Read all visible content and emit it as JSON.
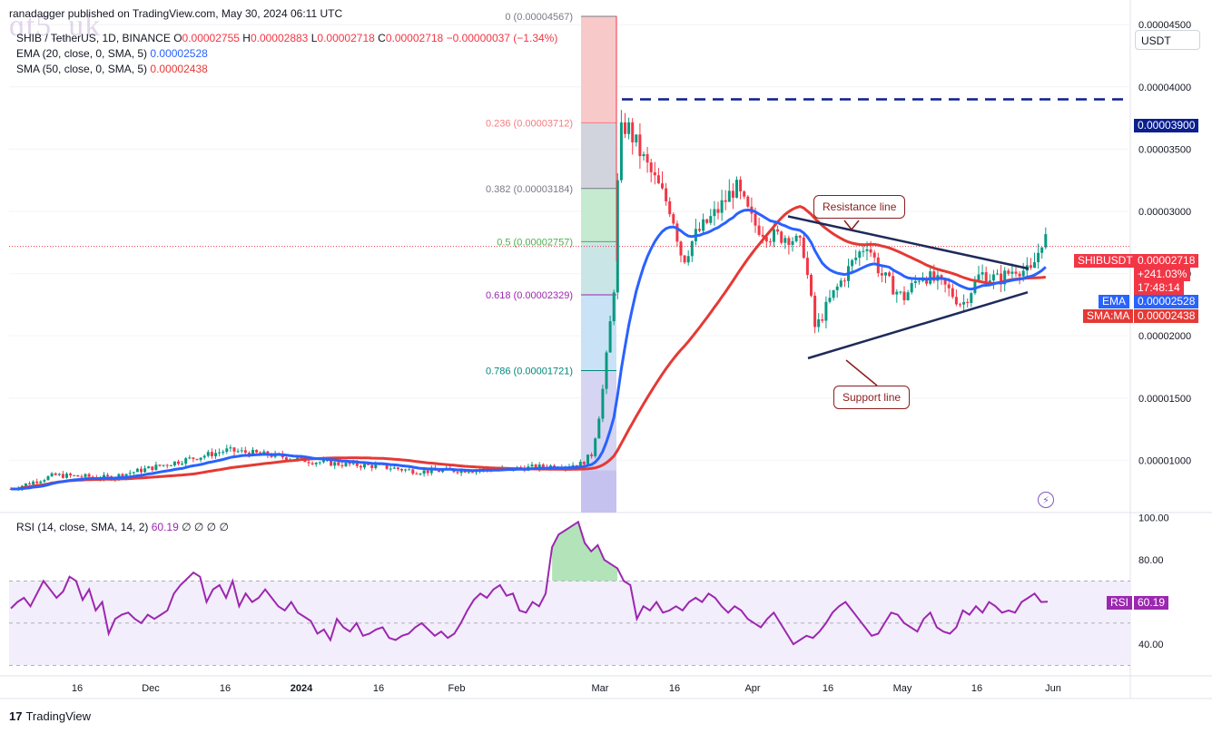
{
  "header": {
    "publisher": "ranadagger published on TradingView.com, May 30, 2024 06:11 UTC",
    "symbol": "SHIB / TetherUS, 1D, BINANCE",
    "o_label": "O",
    "o_val": "0.00002755",
    "h_label": "H",
    "h_val": "0.00002883",
    "l_label": "L",
    "l_val": "0.00002718",
    "c_label": "C",
    "c_val": "0.00002718",
    "change": "−0.00000037 (−1.34%)",
    "ema_text": "EMA (20, close, 0, SMA, 5)",
    "ema_val": "0.00002528",
    "sma_text": "SMA (50, close, 0, SMA, 5)",
    "sma_val": "0.00002438"
  },
  "watermark": "ɑt5_uk",
  "unit": "USDT",
  "price_tags": {
    "symbol_name": "SHIBUSDT",
    "last": "0.00002718",
    "pct": "+241.03%",
    "countdown": "17:48:14",
    "ema_name": "EMA",
    "ema": "0.00002528",
    "sma_name": "SMA:MA",
    "sma": "0.00002438",
    "target": "0.00003900",
    "rsi_name": "RSI",
    "rsi": "60.19"
  },
  "annotations": {
    "resistance": "Resistance line",
    "support": "Support line"
  },
  "rsi_header": {
    "text": "RSI (14, close, SMA, 14, 2)",
    "value": "60.19",
    "nulls": "∅ ∅ ∅ ∅"
  },
  "footer": {
    "brand": "TradingView"
  },
  "colors": {
    "up": "#089981",
    "down": "#f23645",
    "ema": "#2962ff",
    "sma": "#e53935",
    "rsi": "#9c27b0",
    "level": "#0b1f8f"
  },
  "chart_data": [
    {
      "type": "candlestick",
      "title": "SHIB / TetherUS, 1D, BINANCE",
      "y_axis_ticks": [
        "0.00004500",
        "0.00004000",
        "0.00003500",
        "0.00003000",
        "0.00002500",
        "0.00002000",
        "0.00001500",
        "0.00001000"
      ],
      "x_axis_ticks": [
        "16",
        "Dec",
        "16",
        "2024",
        "16",
        "Feb",
        "Mar",
        "16",
        "Apr",
        "16",
        "May",
        "16",
        "Jun"
      ],
      "ylim": [
        5.8e-06,
        4.64e-05
      ],
      "fib_levels": [
        {
          "label": "0 (0.00004567)",
          "price": 4.567e-05
        },
        {
          "label": "0.236 (0.00003712)",
          "price": 3.712e-05
        },
        {
          "label": "0.382 (0.00003184)",
          "price": 3.184e-05
        },
        {
          "label": "0.5 (0.00002757)",
          "price": 2.757e-05
        },
        {
          "label": "0.618 (0.00002329)",
          "price": 2.329e-05
        },
        {
          "label": "0.786 (0.00001721)",
          "price": 1.721e-05
        }
      ],
      "horizontal_level": 3.9e-05,
      "resistance_line": [
        [
          "Apr 8",
          2.96e-05
        ],
        [
          "May 27",
          2.54e-05
        ]
      ],
      "support_line": [
        [
          "Apr 12",
          1.82e-05
        ],
        [
          "May 27",
          2.35e-05
        ]
      ],
      "ema_20_last": 2.528e-05,
      "sma_50_last": 2.438e-05,
      "last_close": 2.718e-05
    },
    {
      "type": "line",
      "title": "RSI (14, close, SMA, 14, 2)",
      "y_axis_ticks": [
        "100.00",
        "80.00",
        "40.00"
      ],
      "ylim": [
        25,
        102
      ],
      "band": [
        30,
        70
      ],
      "last": 60.19,
      "values": [
        57,
        60,
        62,
        58,
        64,
        70,
        66,
        62,
        65,
        72,
        70,
        61,
        66,
        56,
        60,
        45,
        52,
        54,
        55,
        52,
        50,
        54,
        52,
        54,
        56,
        64,
        68,
        71,
        74,
        72,
        60,
        66,
        68,
        62,
        70,
        58,
        64,
        60,
        62,
        66,
        62,
        58,
        56,
        60,
        55,
        53,
        51,
        45,
        47,
        42,
        52,
        48,
        46,
        50,
        44,
        45,
        47,
        48,
        43,
        42,
        44,
        45,
        48,
        50,
        47,
        44,
        46,
        43,
        45,
        50,
        56,
        61,
        64,
        62,
        66,
        68,
        63,
        64,
        56,
        55,
        60,
        58,
        64,
        86,
        92,
        94,
        96,
        98,
        88,
        84,
        87,
        80,
        78,
        76,
        70,
        68,
        52,
        58,
        56,
        60,
        55,
        56,
        58,
        56,
        60,
        62,
        60,
        64,
        62,
        58,
        55,
        58,
        56,
        52,
        50,
        48,
        52,
        55,
        50,
        45,
        40,
        42,
        44,
        43,
        46,
        50,
        55,
        58,
        60,
        56,
        52,
        48,
        44,
        45,
        50,
        55,
        54,
        50,
        48,
        46,
        52,
        55,
        48,
        46,
        45,
        48,
        56,
        54,
        58,
        55,
        60,
        58,
        55,
        56,
        55,
        60,
        62,
        64,
        60,
        60.19
      ]
    }
  ]
}
